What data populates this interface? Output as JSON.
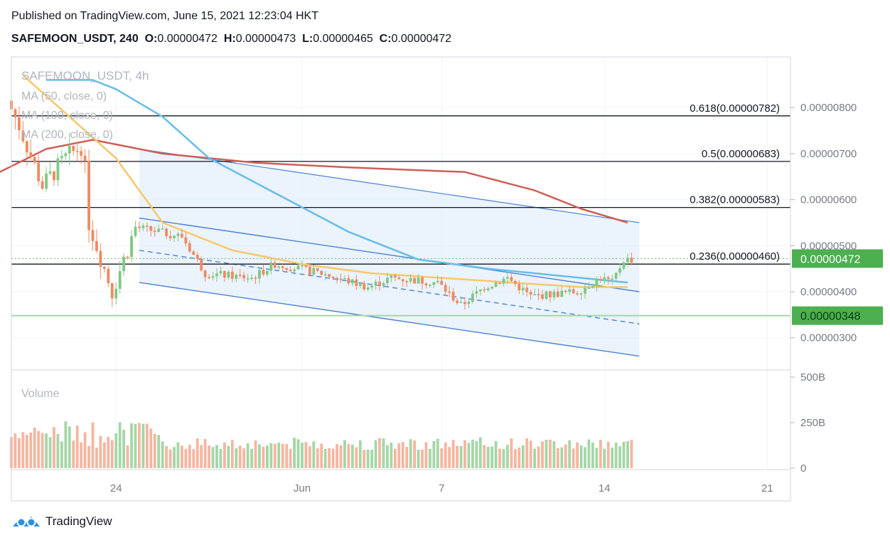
{
  "header": {
    "published": "Published on TradingView.com, June 15, 2021 12:23:04 HKT",
    "symbol": "SAFEMOON_USDT, 240",
    "o_label": "O:",
    "o_value": "0.00000472",
    "h_label": "H:",
    "h_value": "0.00000473",
    "l_label": "L:",
    "l_value": "0.00000465",
    "c_label": "C:",
    "c_value": "0.00000472"
  },
  "legend": {
    "title": "SAFEMOON_USDT, 4h",
    "ma50": "MA (50, close, 0)",
    "ma100": "MA (100, close, 0)",
    "ma200": "MA (200, close, 0)"
  },
  "footer": {
    "brand": "TradingView"
  },
  "colors": {
    "up": "#81c784",
    "down": "#ef8a62",
    "ma50": "#f6c86b",
    "ma100": "#67bde8",
    "ma200": "#cf5e56",
    "channel": "#4a82d6",
    "price_tag": "#4caf50",
    "support_tag": "#4caf50"
  },
  "chart_data": {
    "type": "candlestick",
    "x_ticks": [
      "24",
      "Jun",
      "7",
      "14",
      "21"
    ],
    "y_ticks": [
      "0.00000800",
      "0.00000700",
      "0.00000600",
      "0.00000500",
      "0.00000400",
      "0.00000300"
    ],
    "ylim": [
      2.3e-06,
      9.1e-06
    ],
    "fib_levels": [
      {
        "label": "0.618(0.00000782)",
        "value": 7.82e-06
      },
      {
        "label": "0.5(0.00000683)",
        "value": 6.83e-06
      },
      {
        "label": "0.382(0.00000583)",
        "value": 5.83e-06
      },
      {
        "label": "0.236(0.00000460)",
        "value": 4.6e-06
      }
    ],
    "last_price": {
      "label": "0.00000472",
      "value": 4.72e-06
    },
    "support": {
      "label": "0.00000348",
      "value": 3.48e-06
    },
    "volume": {
      "label": "Volume",
      "y_ticks": [
        "500B",
        "250B",
        "0"
      ],
      "ylim": [
        0,
        500
      ]
    },
    "close_path": [
      [
        "2021-05-19",
        8.7e-06
      ],
      [
        "2021-05-20",
        7.6e-06
      ],
      [
        "2021-05-21",
        6.3e-06
      ],
      [
        "2021-05-22",
        6.9e-06
      ],
      [
        "2021-05-22T18:00",
        7.2e-06
      ],
      [
        "2021-05-23",
        5.5e-06
      ],
      [
        "2021-05-24",
        4e-06
      ],
      [
        "2021-05-24T12:00",
        4.7e-06
      ],
      [
        "2021-05-25",
        5.4e-06
      ],
      [
        "2021-05-26",
        5.3e-06
      ],
      [
        "2021-05-27",
        5.2e-06
      ],
      [
        "2021-05-28",
        4.4e-06
      ],
      [
        "2021-05-30",
        4.3e-06
      ],
      [
        "2021-05-31",
        4.6e-06
      ],
      [
        "2021-06-02",
        4.4e-06
      ],
      [
        "2021-06-04",
        4.1e-06
      ],
      [
        "2021-06-05",
        4.3e-06
      ],
      [
        "2021-06-07",
        4.2e-06
      ],
      [
        "2021-06-08",
        3.7e-06
      ],
      [
        "2021-06-09",
        4.1e-06
      ],
      [
        "2021-06-10",
        4.3e-06
      ],
      [
        "2021-06-11",
        3.9e-06
      ],
      [
        "2021-06-13",
        4e-06
      ],
      [
        "2021-06-14",
        4.3e-06
      ],
      [
        "2021-06-14T12:00",
        4.2e-06
      ],
      [
        "2021-06-15",
        4.7e-06
      ]
    ],
    "ma50": [
      [
        "2021-05-20",
        8.7e-06
      ],
      [
        "2021-05-22",
        7.8e-06
      ],
      [
        "2021-05-24",
        6.9e-06
      ],
      [
        "2021-05-26",
        5.5e-06
      ],
      [
        "2021-05-29",
        4.9e-06
      ],
      [
        "2021-06-01",
        4.6e-06
      ],
      [
        "2021-06-04",
        4.4e-06
      ],
      [
        "2021-06-07",
        4.3e-06
      ],
      [
        "2021-06-10",
        4.2e-06
      ],
      [
        "2021-06-13",
        4.1e-06
      ],
      [
        "2021-06-15",
        4.1e-06
      ]
    ],
    "ma100": [
      [
        "2021-05-21",
        8.6e-06
      ],
      [
        "2021-05-23",
        8.6e-06
      ],
      [
        "2021-05-24",
        8.4e-06
      ],
      [
        "2021-05-26",
        7.8e-06
      ],
      [
        "2021-05-28",
        6.9e-06
      ],
      [
        "2021-05-31",
        6.1e-06
      ],
      [
        "2021-06-03",
        5.3e-06
      ],
      [
        "2021-06-06",
        4.7e-06
      ],
      [
        "2021-06-09",
        4.5e-06
      ],
      [
        "2021-06-13",
        4.3e-06
      ],
      [
        "2021-06-15",
        4.2e-06
      ]
    ],
    "ma200": [
      [
        "2021-05-19",
        6.6e-06
      ],
      [
        "2021-05-21",
        7.1e-06
      ],
      [
        "2021-05-23",
        7.3e-06
      ],
      [
        "2021-05-26",
        7e-06
      ],
      [
        "2021-05-30",
        6.8e-06
      ],
      [
        "2021-06-03",
        6.7e-06
      ],
      [
        "2021-06-08",
        6.6e-06
      ],
      [
        "2021-06-11",
        6.2e-06
      ],
      [
        "2021-06-13",
        5.8e-06
      ],
      [
        "2021-06-15",
        5.5e-06
      ]
    ],
    "channel": {
      "upper": [
        [
          "2021-05-25",
          7.1e-06
        ],
        [
          "2021-06-15T12:00",
          5.5e-06
        ]
      ],
      "mid_upper": [
        [
          "2021-05-25",
          5.6e-06
        ],
        [
          "2021-06-15T12:00",
          4e-06
        ]
      ],
      "mid_dashed": [
        [
          "2021-05-25",
          4.9e-06
        ],
        [
          "2021-06-15T12:00",
          3.3e-06
        ]
      ],
      "lower": [
        [
          "2021-05-25",
          4.2e-06
        ],
        [
          "2021-06-15T12:00",
          2.6e-06
        ]
      ]
    }
  }
}
